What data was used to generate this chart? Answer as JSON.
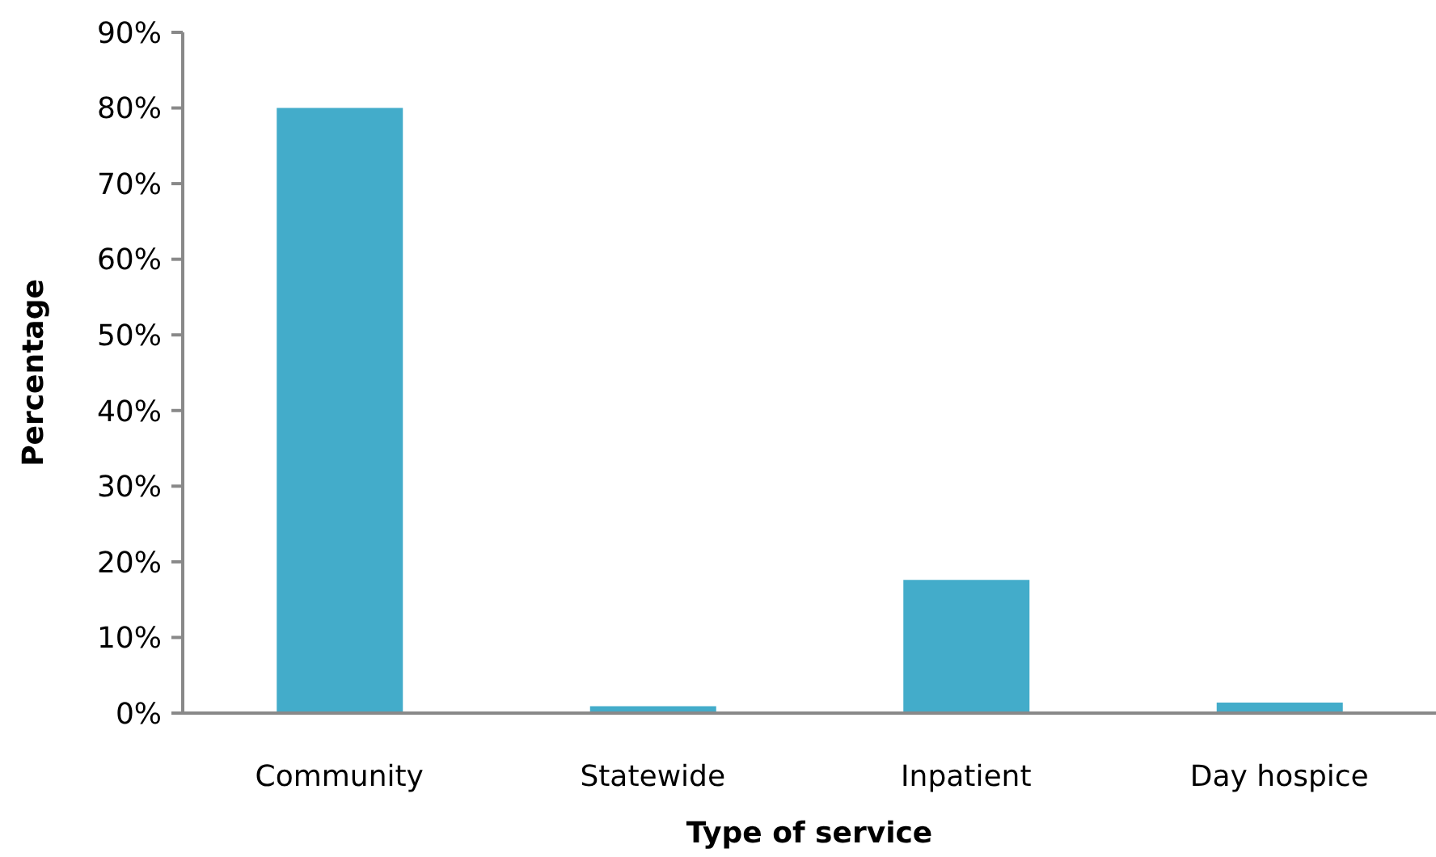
{
  "chart_data": {
    "type": "bar",
    "xlabel": "Type of service",
    "ylabel": "Percentage",
    "categories": [
      "Community",
      "Statewide",
      "Inpatient",
      "Day hospice"
    ],
    "values": [
      80,
      0.9,
      17.6,
      1.4
    ],
    "color": "#43acca",
    "ylim": [
      0,
      90
    ],
    "yticks": [
      {
        "value": 0,
        "label": "0%"
      },
      {
        "value": 10,
        "label": "10%"
      },
      {
        "value": 20,
        "label": "20%"
      },
      {
        "value": 30,
        "label": "30%"
      },
      {
        "value": 40,
        "label": "40%"
      },
      {
        "value": 50,
        "label": "50%"
      },
      {
        "value": 60,
        "label": "60%"
      },
      {
        "value": 70,
        "label": "70%"
      },
      {
        "value": 80,
        "label": "80%"
      },
      {
        "value": 90,
        "label": "90%"
      }
    ]
  }
}
